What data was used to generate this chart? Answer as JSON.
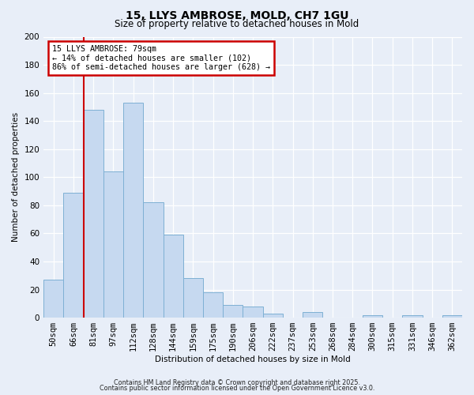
{
  "title": "15, LLYS AMBROSE, MOLD, CH7 1GU",
  "subtitle": "Size of property relative to detached houses in Mold",
  "xlabel": "Distribution of detached houses by size in Mold",
  "ylabel": "Number of detached properties",
  "bar_labels": [
    "50sqm",
    "66sqm",
    "81sqm",
    "97sqm",
    "112sqm",
    "128sqm",
    "144sqm",
    "159sqm",
    "175sqm",
    "190sqm",
    "206sqm",
    "222sqm",
    "237sqm",
    "253sqm",
    "268sqm",
    "284sqm",
    "300sqm",
    "315sqm",
    "331sqm",
    "346sqm",
    "362sqm"
  ],
  "bar_values": [
    27,
    89,
    148,
    104,
    153,
    82,
    59,
    28,
    18,
    9,
    8,
    3,
    0,
    4,
    0,
    0,
    2,
    0,
    2,
    0,
    2
  ],
  "bar_color": "#c6d9f0",
  "bar_edge_color": "#7eb0d4",
  "background_color": "#e8eef8",
  "plot_bg_color": "#e8eef8",
  "grid_color": "#ffffff",
  "property_line_label": "15 LLYS AMBROSE: 79sqm",
  "annotation_line1": "← 14% of detached houses are smaller (102)",
  "annotation_line2": "86% of semi-detached houses are larger (628) →",
  "annotation_box_color": "#ffffff",
  "annotation_box_edge": "#cc0000",
  "vline_color": "#cc0000",
  "ylim": [
    0,
    200
  ],
  "yticks": [
    0,
    20,
    40,
    60,
    80,
    100,
    120,
    140,
    160,
    180,
    200
  ],
  "footer1": "Contains HM Land Registry data © Crown copyright and database right 2025.",
  "footer2": "Contains public sector information licensed under the Open Government Licence v3.0."
}
